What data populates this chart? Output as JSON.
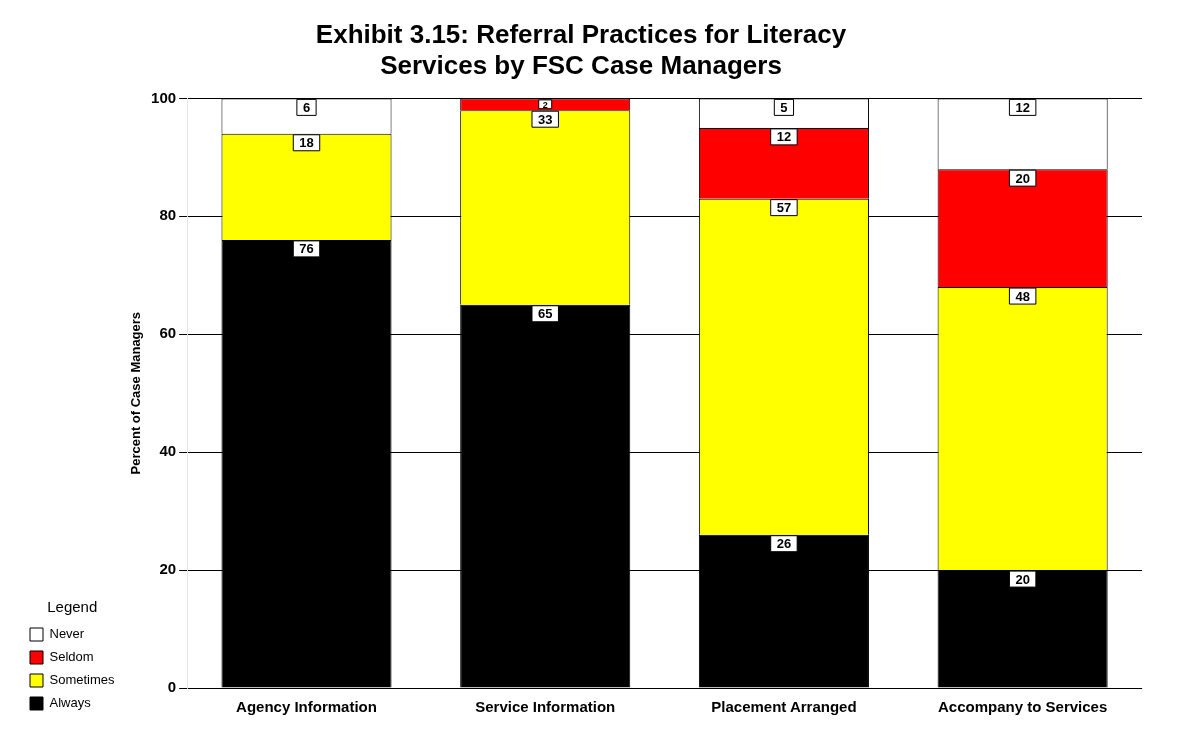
{
  "chart_data": {
    "type": "bar",
    "title": "Exhibit 3.15: Referral Practices for Literacy Services by FSC Case Managers",
    "ylabel": "Percent of Case Managers",
    "legend_title": "Legend",
    "categories": [
      "Agency Information",
      "Service Information",
      "Placement Arranged",
      "Accompany to Services"
    ],
    "stacked": true,
    "series": [
      {
        "name": "Always",
        "color": "#000000",
        "values": [
          76,
          65,
          26,
          20
        ]
      },
      {
        "name": "Sometimes",
        "color": "#ffff00",
        "values": [
          18,
          33,
          57,
          48
        ]
      },
      {
        "name": "Seldom",
        "color": "#ff0000",
        "values": [
          null,
          2,
          12,
          20
        ]
      },
      {
        "name": "Never",
        "color": "#ffffff",
        "values": [
          6,
          null,
          5,
          12
        ]
      }
    ],
    "ylim": [
      0,
      100
    ],
    "yticks": [
      0,
      20,
      40,
      60,
      80,
      100
    ],
    "grid": "y",
    "legend": "bottom left",
    "data_labels": true
  }
}
